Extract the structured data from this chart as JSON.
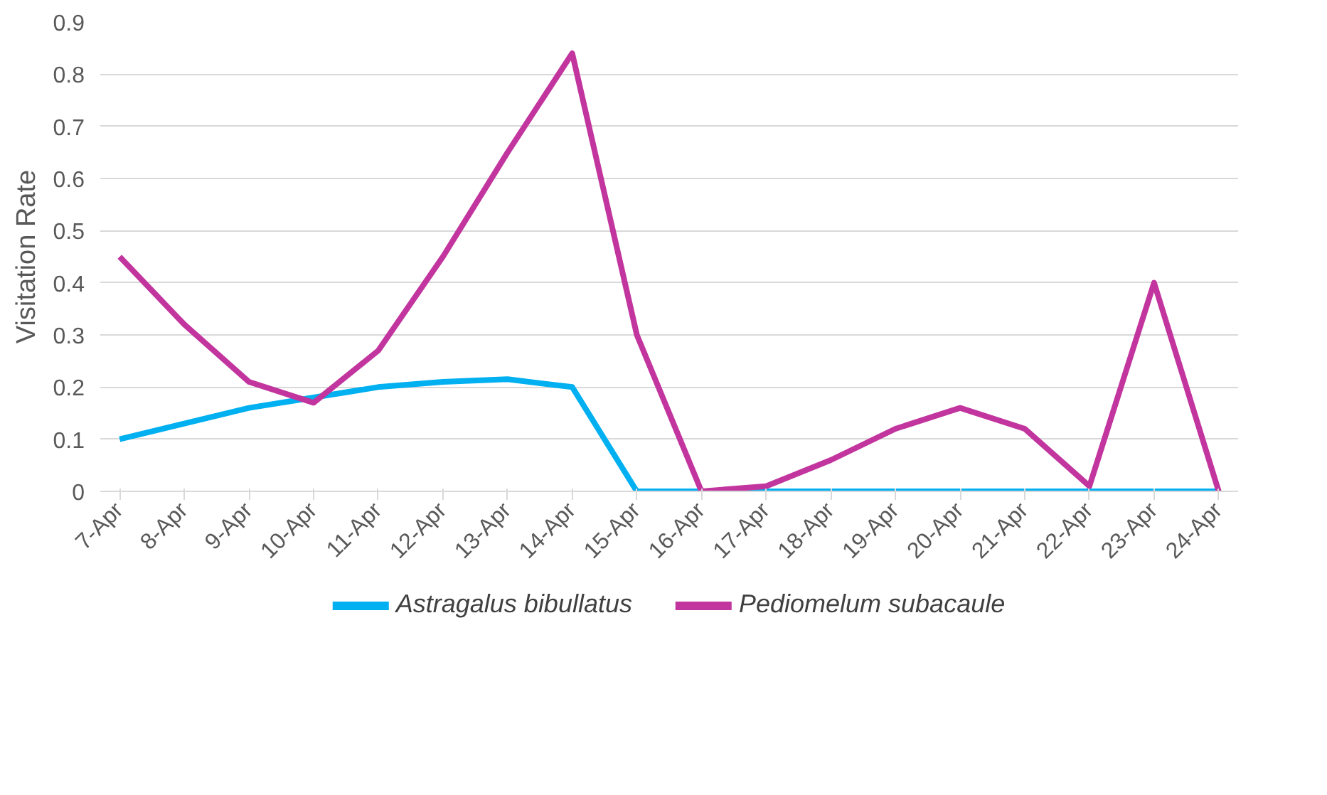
{
  "chart_data": {
    "type": "line",
    "ylabel": "Visitation Rate",
    "categories": [
      "7-Apr",
      "8-Apr",
      "9-Apr",
      "10-Apr",
      "11-Apr",
      "12-Apr",
      "13-Apr",
      "14-Apr",
      "15-Apr",
      "16-Apr",
      "17-Apr",
      "18-Apr",
      "19-Apr",
      "20-Apr",
      "21-Apr",
      "22-Apr",
      "23-Apr",
      "24-Apr"
    ],
    "series": [
      {
        "name": "Astragalus bibullatus",
        "color": "#00b0f0",
        "values": [
          0.1,
          0.13,
          0.16,
          0.18,
          0.2,
          0.21,
          0.215,
          0.2,
          0,
          0,
          0,
          0,
          0,
          0,
          0,
          0,
          0,
          0
        ]
      },
      {
        "name": "Pediomelum subacaule",
        "color": "#c2359e",
        "values": [
          0.45,
          0.32,
          0.21,
          0.17,
          0.27,
          0.45,
          0.65,
          0.84,
          0.3,
          0,
          0.01,
          0.06,
          0.12,
          0.16,
          0.12,
          0.01,
          0.4,
          0
        ]
      }
    ],
    "ylim": [
      0,
      0.9
    ],
    "yticks": [
      0,
      0.1,
      0.2,
      0.3,
      0.4,
      0.5,
      0.6,
      0.7,
      0.8,
      0.9
    ],
    "grid": "y",
    "legend": "bottom",
    "marker": "none",
    "line_style": "solid"
  }
}
